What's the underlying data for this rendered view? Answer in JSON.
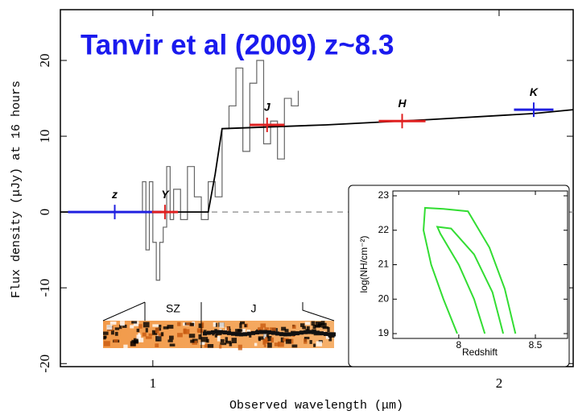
{
  "chart_data": [
    {
      "type": "line",
      "title": "Tanvir et al (2009) z~8.3",
      "x_label": "Observed wavelength (μm)",
      "y_label": "Flux density (μJy) at 16 hours",
      "xlim": [
        0.733,
        2.214
      ],
      "xticks": [
        1,
        2
      ],
      "ylim": [
        -20.4,
        26.7
      ],
      "yticks": [
        -20,
        -10,
        0,
        10,
        20
      ],
      "spectrum": {
        "color": "#666666",
        "x": [
          0.96,
          0.97,
          0.98,
          0.99,
          1.0,
          1.01,
          1.02,
          1.03,
          1.04,
          1.05,
          1.06,
          1.08,
          1.1,
          1.12,
          1.14,
          1.16,
          1.18,
          1.2,
          1.22,
          1.24,
          1.26,
          1.28,
          1.3,
          1.32,
          1.34,
          1.36,
          1.38,
          1.4,
          1.42
        ],
        "values": [
          0,
          4,
          -5,
          4,
          -4,
          -9,
          -4,
          -2,
          6,
          -1,
          3,
          -1,
          6,
          2,
          -1,
          4,
          2,
          11,
          14,
          19,
          8,
          17,
          20,
          9,
          12,
          7,
          15,
          14,
          16
        ]
      },
      "model": {
        "color": "#000000",
        "x": [
          0.733,
          1.16,
          1.18,
          1.2,
          1.5,
          1.8,
          2.1,
          2.214
        ],
        "values": [
          0,
          0,
          5,
          11,
          11.5,
          12.2,
          13,
          13.5
        ]
      },
      "zero_line": {
        "color": "#888888",
        "x": [
          1.17,
          2.214
        ],
        "values": [
          0,
          0
        ]
      },
      "photometry": {
        "labels": [
          "z",
          "Y",
          "J",
          "H",
          "K"
        ],
        "x": [
          0.89,
          1.035,
          1.33,
          1.72,
          2.1
        ],
        "xerr": [
          0.27,
          0.075,
          0.1,
          0.135,
          0.114
        ],
        "values": [
          0,
          0,
          11.5,
          12,
          13.5
        ],
        "colors": [
          "#2020e0",
          "#e02020",
          "#e02020",
          "#e02020",
          "#2020e0"
        ]
      },
      "cutout_labels": [
        "SZ",
        "J"
      ]
    },
    {
      "type": "line",
      "x_label": "Redshift",
      "y_label": "log(NH/cm⁻²)",
      "xlim": [
        7.57,
        8.71
      ],
      "xticks": [
        8,
        8.5
      ],
      "ylim": [
        18.86,
        23.14
      ],
      "yticks": [
        19,
        20,
        21,
        22,
        23
      ],
      "series": [
        {
          "color": "#33dd33",
          "x": [
            7.99,
            7.9,
            7.82,
            7.77,
            7.78,
            7.9,
            8.06,
            8.2,
            8.3,
            8.37
          ],
          "values": [
            19,
            20,
            21,
            22,
            22.65,
            22.62,
            22.55,
            21.5,
            20.3,
            19
          ]
        },
        {
          "color": "#33dd33",
          "x": [
            8.17,
            8.1,
            8.0,
            7.88,
            7.86,
            7.95,
            8.1,
            8.22,
            8.29
          ],
          "values": [
            19,
            20,
            21,
            21.9,
            22.1,
            22.05,
            21.3,
            20.2,
            19
          ]
        }
      ]
    }
  ]
}
